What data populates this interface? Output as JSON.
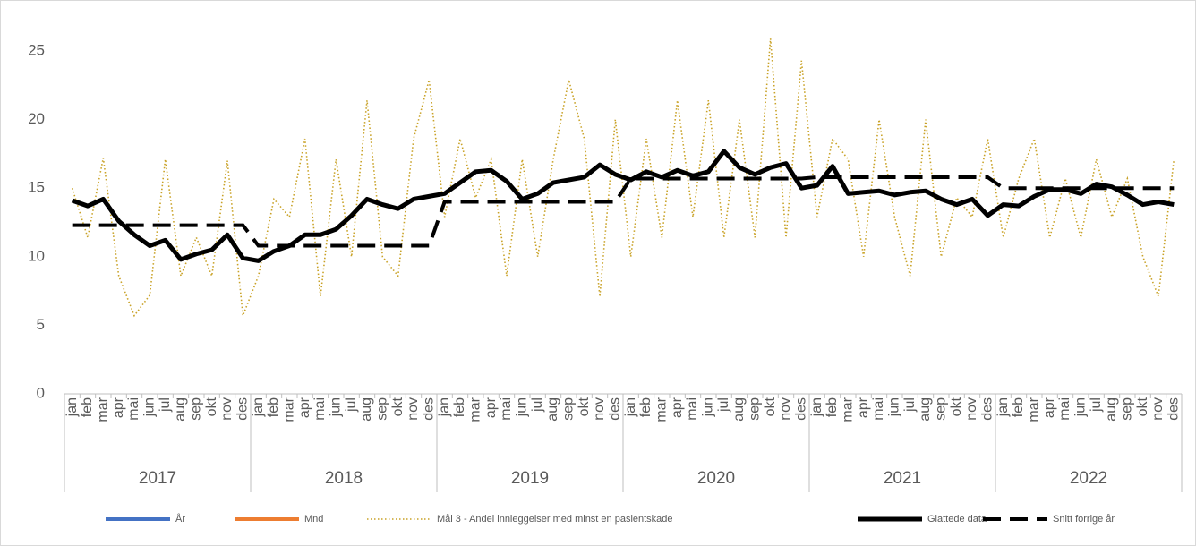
{
  "chart_data": {
    "type": "line",
    "categories": [
      "jan",
      "feb",
      "mar",
      "apr",
      "mai",
      "jun",
      "jul",
      "aug",
      "sep",
      "okt",
      "nov",
      "des",
      "jan",
      "feb",
      "mar",
      "apr",
      "mai",
      "jun",
      "jul",
      "aug",
      "sep",
      "okt",
      "nov",
      "des",
      "jan",
      "feb",
      "mar",
      "apr",
      "mai",
      "jun",
      "jul",
      "aug",
      "sep",
      "okt",
      "nov",
      "des",
      "jan",
      "feb",
      "mar",
      "apr",
      "mai",
      "jun",
      "jul",
      "aug",
      "sep",
      "okt",
      "nov",
      "des",
      "jan",
      "feb",
      "mar",
      "apr",
      "mai",
      "jun",
      "jul",
      "aug",
      "sep",
      "okt",
      "nov",
      "des",
      "jan",
      "feb",
      "mar",
      "apr",
      "mai",
      "jun",
      "jul",
      "aug",
      "sep",
      "okt",
      "nov",
      "des"
    ],
    "category_groups": [
      "2017",
      "2018",
      "2019",
      "2020",
      "2021",
      "2022"
    ],
    "ylim": [
      0,
      27
    ],
    "yticks": [
      0,
      5,
      10,
      15,
      20,
      25
    ],
    "grid": false,
    "legend": "bottom",
    "series": [
      {
        "name": "År",
        "color": "#4472c4",
        "style": "solid",
        "values": [
          null,
          null,
          null,
          null,
          null,
          null,
          null,
          null,
          null,
          null,
          null,
          null,
          null,
          null,
          null,
          null,
          null,
          null,
          null,
          null,
          null,
          null,
          null,
          null,
          null,
          null,
          null,
          null,
          null,
          null,
          null,
          null,
          null,
          null,
          null,
          null,
          null,
          null,
          null,
          null,
          null,
          null,
          null,
          null,
          null,
          null,
          null,
          null,
          null,
          null,
          null,
          null,
          null,
          null,
          null,
          null,
          null,
          null,
          null,
          null,
          null,
          null,
          null,
          null,
          null,
          null,
          null,
          null,
          null,
          null,
          null,
          null
        ]
      },
      {
        "name": "Mnd",
        "color": "#ed7d31",
        "style": "solid",
        "values": [
          null,
          null,
          null,
          null,
          null,
          null,
          null,
          null,
          null,
          null,
          null,
          null,
          null,
          null,
          null,
          null,
          null,
          null,
          null,
          null,
          null,
          null,
          null,
          null,
          null,
          null,
          null,
          null,
          null,
          null,
          null,
          null,
          null,
          null,
          null,
          null,
          null,
          null,
          null,
          null,
          null,
          null,
          null,
          null,
          null,
          null,
          null,
          null,
          null,
          null,
          null,
          null,
          null,
          null,
          null,
          null,
          null,
          null,
          null,
          null,
          null,
          null,
          null,
          null,
          null,
          null,
          null,
          null,
          null,
          null,
          null,
          null
        ]
      },
      {
        "name": "Mål 3 - Andel innleggelser med minst en pasientskade",
        "color": "#c9a227",
        "style": "dotted",
        "values": [
          15.0,
          11.4,
          17.2,
          8.6,
          5.7,
          7.2,
          17.1,
          8.6,
          11.4,
          8.6,
          17.0,
          5.7,
          8.6,
          14.2,
          12.9,
          18.6,
          7.1,
          17.1,
          10.0,
          21.4,
          10.0,
          8.6,
          18.6,
          22.9,
          12.9,
          18.6,
          14.3,
          17.1,
          8.6,
          17.1,
          10.0,
          17.1,
          22.9,
          18.6,
          7.1,
          20.0,
          10.0,
          18.6,
          11.4,
          21.4,
          12.9,
          21.4,
          11.4,
          20.0,
          11.4,
          25.9,
          11.4,
          24.3,
          12.9,
          18.6,
          17.1,
          10.0,
          20.0,
          12.9,
          8.6,
          20.0,
          10.0,
          14.3,
          12.9,
          18.6,
          11.4,
          15.7,
          18.6,
          11.4,
          15.7,
          11.4,
          17.1,
          12.9,
          15.7,
          10.0,
          7.1,
          17.1
        ]
      },
      {
        "name": "Glattede data",
        "color": "#000000",
        "style": "thick",
        "values": [
          14.1,
          13.7,
          14.2,
          12.6,
          11.6,
          10.8,
          11.2,
          9.8,
          10.2,
          10.5,
          11.6,
          9.9,
          9.7,
          10.4,
          10.8,
          11.6,
          11.6,
          12.0,
          13.0,
          14.2,
          13.8,
          13.5,
          14.2,
          14.4,
          14.6,
          15.4,
          16.2,
          16.3,
          15.5,
          14.2,
          14.6,
          15.4,
          15.6,
          15.8,
          16.7,
          16.0,
          15.6,
          16.2,
          15.8,
          16.3,
          15.9,
          16.2,
          17.7,
          16.5,
          16.0,
          16.5,
          16.8,
          15.0,
          15.2,
          16.6,
          14.6,
          14.7,
          14.8,
          14.5,
          14.7,
          14.8,
          14.2,
          13.8,
          14.2,
          13.0,
          13.8,
          13.7,
          14.4,
          14.9,
          14.9,
          14.6,
          15.3,
          15.1,
          14.5,
          13.8,
          14.0,
          13.8
        ]
      },
      {
        "name": "Snitt forrige år",
        "color": "#000000",
        "style": "dashed",
        "values": [
          12.3,
          12.3,
          12.3,
          12.3,
          12.3,
          12.3,
          12.3,
          12.3,
          12.3,
          12.3,
          12.3,
          12.3,
          10.8,
          10.8,
          10.8,
          10.8,
          10.8,
          10.8,
          10.8,
          10.8,
          10.8,
          10.8,
          10.8,
          10.8,
          14.0,
          14.0,
          14.0,
          14.0,
          14.0,
          14.0,
          14.0,
          14.0,
          14.0,
          14.0,
          14.0,
          14.0,
          15.7,
          15.7,
          15.7,
          15.7,
          15.7,
          15.7,
          15.7,
          15.7,
          15.7,
          15.7,
          15.7,
          15.7,
          15.8,
          15.8,
          15.8,
          15.8,
          15.8,
          15.8,
          15.8,
          15.8,
          15.8,
          15.8,
          15.8,
          15.8,
          15.0,
          15.0,
          15.0,
          15.0,
          15.0,
          15.0,
          15.0,
          15.0,
          15.0,
          15.0,
          15.0,
          15.0
        ]
      }
    ]
  }
}
